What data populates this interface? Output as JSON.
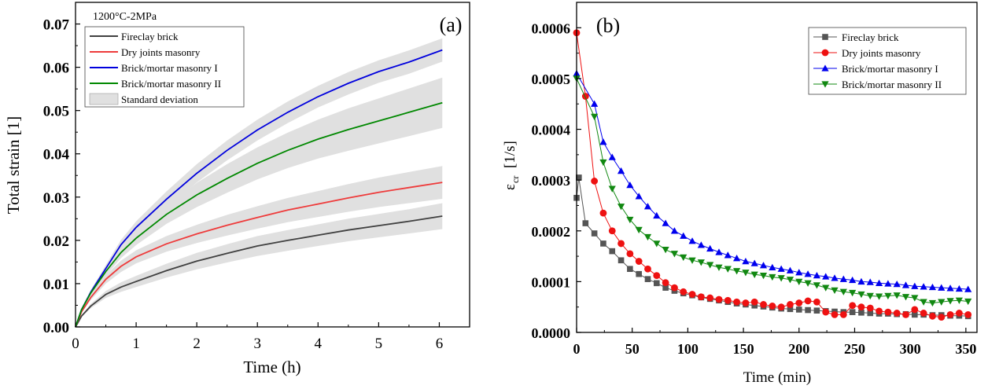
{
  "chart_data": [
    {
      "type": "line",
      "panel_label": "(a)",
      "annotation": "1200°C-2MPa",
      "xlabel": "Time (h)",
      "ylabel": "Total strain [1]",
      "xlim": [
        0,
        6.5
      ],
      "ylim": [
        0,
        0.075
      ],
      "xticks": [
        0,
        1,
        2,
        3,
        4,
        5,
        6
      ],
      "yticks": [
        0.0,
        0.01,
        0.02,
        0.03,
        0.04,
        0.05,
        0.06,
        0.07
      ],
      "ytick_labels": [
        "0.00",
        "0.01",
        "0.02",
        "0.03",
        "0.04",
        "0.05",
        "0.06",
        "0.07"
      ],
      "legend_position": "top-left",
      "band_label": "Standard deviation",
      "band_color": "#e0e0e0",
      "series": [
        {
          "name": "Fireclay brick",
          "color": "#404040",
          "x": [
            0,
            0.1,
            0.25,
            0.5,
            0.75,
            1,
            1.5,
            2,
            2.5,
            3,
            3.5,
            4,
            4.5,
            5,
            5.5,
            6.05
          ],
          "y": [
            0,
            0.0025,
            0.0048,
            0.0075,
            0.0092,
            0.0105,
            0.013,
            0.0152,
            0.017,
            0.0187,
            0.02,
            0.0212,
            0.0224,
            0.0234,
            0.0244,
            0.0256
          ],
          "sd": [
            0,
            0.0002,
            0.0005,
            0.0008,
            0.0011,
            0.0013,
            0.0016,
            0.0019,
            0.0021,
            0.0023,
            0.0024,
            0.0025,
            0.0026,
            0.0027,
            0.0028,
            0.003
          ]
        },
        {
          "name": "Dry joints masonry",
          "color": "#ee3b3b",
          "x": [
            0,
            0.1,
            0.25,
            0.5,
            0.75,
            1,
            1.5,
            2,
            2.5,
            3,
            3.5,
            4,
            4.5,
            5,
            5.5,
            6.05
          ],
          "y": [
            0,
            0.0035,
            0.0068,
            0.011,
            0.014,
            0.0162,
            0.0192,
            0.0215,
            0.0235,
            0.0253,
            0.027,
            0.0284,
            0.0298,
            0.0311,
            0.0322,
            0.0334
          ],
          "sd": [
            0,
            0.0003,
            0.0006,
            0.001,
            0.0013,
            0.0015,
            0.0018,
            0.0021,
            0.0024,
            0.0026,
            0.0028,
            0.003,
            0.0032,
            0.0034,
            0.0036,
            0.0038
          ]
        },
        {
          "name": "Brick/mortar masonry I",
          "color": "#0000dd",
          "x": [
            0,
            0.1,
            0.25,
            0.5,
            0.75,
            1,
            1.5,
            2,
            2.5,
            3,
            3.5,
            4,
            4.5,
            5,
            5.5,
            6.05
          ],
          "y": [
            0,
            0.004,
            0.008,
            0.0135,
            0.019,
            0.023,
            0.0295,
            0.0355,
            0.0408,
            0.0455,
            0.0496,
            0.0532,
            0.0563,
            0.059,
            0.0612,
            0.064
          ],
          "sd": [
            0,
            0.0002,
            0.0005,
            0.0008,
            0.0011,
            0.0014,
            0.0018,
            0.0021,
            0.0023,
            0.0024,
            0.0025,
            0.0025,
            0.0026,
            0.0026,
            0.0027,
            0.0027
          ]
        },
        {
          "name": "Brick/mortar masonry II",
          "color": "#008800",
          "x": [
            0,
            0.1,
            0.25,
            0.5,
            0.75,
            1,
            1.5,
            2,
            2.5,
            3,
            3.5,
            4,
            4.5,
            5,
            5.5,
            6.05
          ],
          "y": [
            0,
            0.004,
            0.0078,
            0.0128,
            0.0172,
            0.0205,
            0.026,
            0.0305,
            0.0343,
            0.0378,
            0.0408,
            0.0434,
            0.0456,
            0.0476,
            0.0496,
            0.0518
          ],
          "sd": [
            0,
            0.0002,
            0.0005,
            0.0009,
            0.0013,
            0.0016,
            0.0022,
            0.0028,
            0.0033,
            0.0037,
            0.0041,
            0.0045,
            0.0049,
            0.0052,
            0.0055,
            0.0058
          ]
        }
      ]
    },
    {
      "type": "line",
      "panel_label": "(b)",
      "xlabel": "Time (min)",
      "ylabel_main": "ε",
      "ylabel_sub": "cr",
      "ylabel_unit": "[1/s]",
      "xlim": [
        0,
        360
      ],
      "ylim": [
        0,
        0.00065
      ],
      "xticks": [
        0,
        50,
        100,
        150,
        200,
        250,
        300,
        350
      ],
      "yticks": [
        0,
        0.0001,
        0.0002,
        0.0003,
        0.0004,
        0.0005,
        0.0006
      ],
      "ytick_labels": [
        "0.0000",
        "0.0001",
        "0.0002",
        "0.0003",
        "0.0004",
        "0.0005",
        "0.0006"
      ],
      "legend_position": "top-right",
      "series": [
        {
          "name": "Fireclay brick",
          "color": "#555555",
          "marker": "square",
          "x": [
            0,
            2,
            8,
            16,
            24,
            32,
            40,
            48,
            56,
            64,
            72,
            80,
            88,
            96,
            104,
            112,
            120,
            128,
            136,
            144,
            152,
            160,
            168,
            176,
            184,
            192,
            200,
            208,
            216,
            224,
            232,
            240,
            248,
            256,
            264,
            272,
            280,
            288,
            296,
            304,
            312,
            320,
            328,
            336,
            344,
            352
          ],
          "y": [
            0.000265,
            0.000305,
            0.000215,
            0.000195,
            0.000175,
            0.00016,
            0.000142,
            0.000125,
            0.000115,
            0.000105,
            9.7e-05,
            8.8e-05,
            8.2e-05,
            7.7e-05,
            7.3e-05,
            6.9e-05,
            6.6e-05,
            6.3e-05,
            6e-05,
            5.7e-05,
            5.5e-05,
            5.3e-05,
            5.1e-05,
            4.9e-05,
            4.7e-05,
            4.6e-05,
            4.5e-05,
            4.4e-05,
            4.3e-05,
            4.2e-05,
            4.1e-05,
            4e-05,
            4e-05,
            3.9e-05,
            3.8e-05,
            3.7e-05,
            3.7e-05,
            3.6e-05,
            3.6e-05,
            3.5e-05,
            3.5e-05,
            3.4e-05,
            3.4e-05,
            3.3e-05,
            3.3e-05,
            3.2e-05
          ]
        },
        {
          "name": "Dry joints masonry",
          "color": "#ee1111",
          "marker": "circle",
          "x": [
            0,
            8,
            16,
            24,
            32,
            40,
            48,
            56,
            64,
            72,
            80,
            88,
            96,
            104,
            112,
            120,
            128,
            136,
            144,
            152,
            160,
            168,
            176,
            184,
            192,
            200,
            208,
            216,
            224,
            232,
            240,
            248,
            256,
            264,
            272,
            280,
            288,
            296,
            304,
            312,
            320,
            328,
            336,
            344,
            352
          ],
          "y": [
            0.00059,
            0.000465,
            0.000298,
            0.000235,
            0.0002,
            0.000175,
            0.000155,
            0.00014,
            0.000125,
            0.000112,
            9.8e-05,
            8.8e-05,
            8e-05,
            7.5e-05,
            7e-05,
            6.8e-05,
            6.5e-05,
            6.3e-05,
            6e-05,
            5.8e-05,
            6e-05,
            5.5e-05,
            5.2e-05,
            5e-05,
            5.5e-05,
            5.8e-05,
            6.2e-05,
            6e-05,
            4e-05,
            3.5e-05,
            3.5e-05,
            5.3e-05,
            5e-05,
            4.8e-05,
            4.2e-05,
            4e-05,
            3.8e-05,
            3.5e-05,
            4.5e-05,
            3.8e-05,
            3.2e-05,
            3e-05,
            3.5e-05,
            3.8e-05,
            3.5e-05
          ]
        },
        {
          "name": "Brick/mortar masonry I",
          "color": "#0000ee",
          "marker": "triangle-up",
          "x": [
            0,
            16,
            24,
            32,
            40,
            48,
            56,
            64,
            72,
            80,
            88,
            96,
            104,
            112,
            120,
            128,
            136,
            144,
            152,
            160,
            168,
            176,
            184,
            192,
            200,
            208,
            216,
            224,
            232,
            240,
            248,
            256,
            264,
            272,
            280,
            288,
            296,
            304,
            312,
            320,
            328,
            336,
            344,
            352
          ],
          "y": [
            0.00051,
            0.00045,
            0.000375,
            0.000345,
            0.000318,
            0.00029,
            0.000268,
            0.000248,
            0.00023,
            0.000215,
            0.0002,
            0.00019,
            0.00018,
            0.000172,
            0.000165,
            0.000158,
            0.000152,
            0.000146,
            0.00014,
            0.000136,
            0.000132,
            0.000128,
            0.000125,
            0.000122,
            0.000118,
            0.000115,
            0.000112,
            0.00011,
            0.000107,
            0.000105,
            0.000103,
            0.0001,
            9.9e-05,
            9.7e-05,
            9.6e-05,
            9.5e-05,
            9.3e-05,
            9.1e-05,
            9e-05,
            8.9e-05,
            8.8e-05,
            8.7e-05,
            8.6e-05,
            8.5e-05
          ]
        },
        {
          "name": "Brick/mortar masonry II",
          "color": "#118811",
          "marker": "triangle-down",
          "x": [
            0,
            16,
            24,
            32,
            40,
            48,
            56,
            64,
            72,
            80,
            88,
            96,
            104,
            112,
            120,
            128,
            136,
            144,
            152,
            160,
            168,
            176,
            184,
            192,
            200,
            208,
            216,
            224,
            232,
            240,
            248,
            256,
            264,
            272,
            280,
            288,
            296,
            304,
            312,
            320,
            328,
            336,
            344,
            352
          ],
          "y": [
            0.0005,
            0.000425,
            0.000335,
            0.000283,
            0.000248,
            0.000222,
            0.000202,
            0.000188,
            0.000175,
            0.000163,
            0.000155,
            0.000148,
            0.000142,
            0.000138,
            0.000133,
            0.000128,
            0.000125,
            0.000121,
            0.000118,
            0.000114,
            0.000112,
            0.000109,
            0.000107,
            0.000104,
            0.0001,
            9.7e-05,
            9.3e-05,
            8.8e-05,
            8.3e-05,
            8e-05,
            7.8e-05,
            7.5e-05,
            7.2e-05,
            7.1e-05,
            7.2e-05,
            7.3e-05,
            7e-05,
            6.8e-05,
            6e-05,
            5.8e-05,
            6e-05,
            6.2e-05,
            6.3e-05,
            6.1e-05
          ]
        }
      ]
    }
  ]
}
